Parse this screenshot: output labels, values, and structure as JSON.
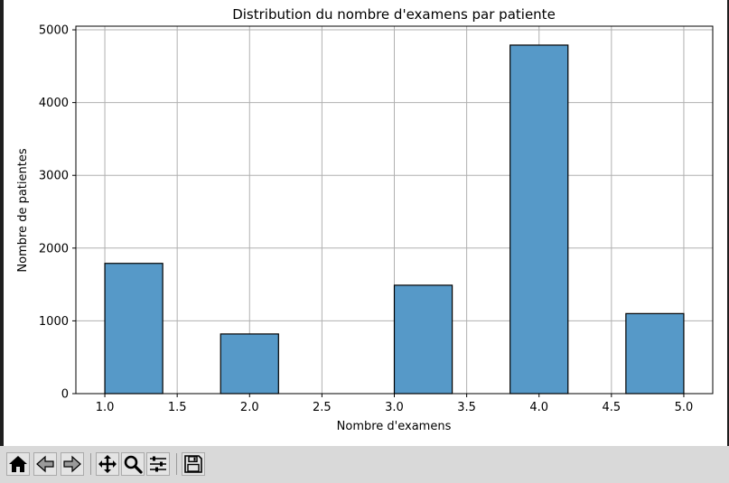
{
  "chart_data": {
    "type": "bar",
    "title": "Distribution du nombre d'examens par patiente",
    "xlabel": "Nombre d'examens",
    "ylabel": "Nombre de patientes",
    "xlim": [
      0.8,
      5.2
    ],
    "ylim": [
      0,
      5050
    ],
    "xticks": [
      "1.0",
      "1.5",
      "2.0",
      "2.5",
      "3.0",
      "3.5",
      "4.0",
      "4.5",
      "5.0"
    ],
    "yticks": [
      "0",
      "1000",
      "2000",
      "3000",
      "4000",
      "5000"
    ],
    "grid": true,
    "bar_color": "#5699c8",
    "bars": [
      {
        "x0": 1.0,
        "x1": 1.4,
        "value": 1790
      },
      {
        "x0": 1.8,
        "x1": 2.2,
        "value": 820
      },
      {
        "x0": 3.0,
        "x1": 3.4,
        "value": 1490
      },
      {
        "x0": 3.8,
        "x1": 4.2,
        "value": 4790
      },
      {
        "x0": 4.6,
        "x1": 5.0,
        "value": 1100
      }
    ]
  },
  "toolbar": {
    "buttons": [
      {
        "name": "home-button",
        "icon": "home-icon"
      },
      {
        "name": "back-button",
        "icon": "arrow-left-icon"
      },
      {
        "name": "forward-button",
        "icon": "arrow-right-icon"
      },
      {
        "name": "pan-button",
        "icon": "move-icon"
      },
      {
        "name": "zoom-button",
        "icon": "magnifier-icon"
      },
      {
        "name": "configure-subplots-button",
        "icon": "sliders-icon"
      },
      {
        "name": "save-button",
        "icon": "floppy-disk-icon"
      }
    ]
  }
}
